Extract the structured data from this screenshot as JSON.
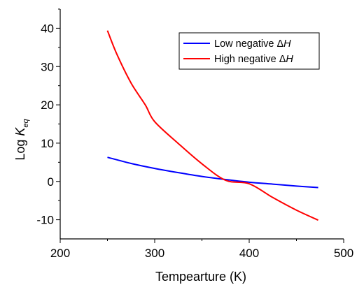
{
  "chart_data": {
    "type": "line",
    "xlabel": "Tempearture (K)",
    "ylabel": {
      "main": "Log ",
      "var": "K",
      "sub": "eq"
    },
    "xlim": [
      200,
      500
    ],
    "ylim": [
      -15,
      45
    ],
    "xticks": [
      200,
      300,
      400,
      500
    ],
    "yticks": [
      -10,
      0,
      10,
      20,
      30,
      40
    ],
    "grid": false,
    "legend_position": "top-right",
    "series": [
      {
        "name": {
          "prefix": "Low negative ",
          "delta": "Δ",
          "var": "H"
        },
        "color": "#0000ff",
        "x": [
          250,
          275,
          300,
          325,
          350,
          375,
          400,
          425,
          450,
          473
        ],
        "y": [
          6.3,
          4.7,
          3.4,
          2.3,
          1.3,
          0.5,
          -0.2,
          -0.7,
          -1.2,
          -1.6
        ]
      },
      {
        "name": {
          "prefix": "High negative ",
          "delta": "Δ",
          "var": "H"
        },
        "color": "#ff0000",
        "x": [
          250,
          260,
          275,
          290,
          300,
          325,
          350,
          375,
          400,
          425,
          450,
          473
        ],
        "y": [
          39.4,
          33.2,
          25.7,
          20.0,
          15.6,
          9.9,
          4.6,
          0.3,
          -0.6,
          -4.2,
          -7.5,
          -10.1
        ]
      }
    ]
  }
}
